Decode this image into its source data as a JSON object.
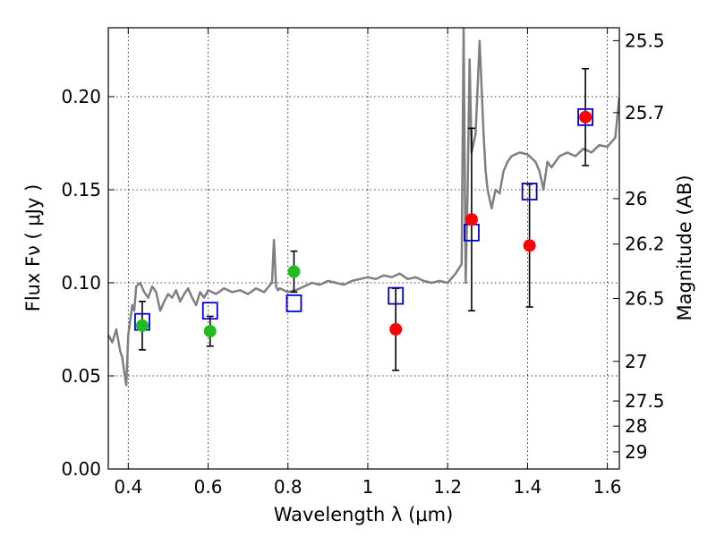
{
  "chart_data": {
    "type": "scatter",
    "xlabel": "Wavelength  λ (μm)",
    "ylabel": "Flux  Fν  ( μJy )",
    "y2label": "Magnitude (AB)",
    "xlim": [
      0.35,
      1.63
    ],
    "ylim": [
      0.0,
      0.237
    ],
    "grid": true,
    "x_ticks": [
      0.4,
      0.6,
      0.8,
      1.0,
      1.2,
      1.4,
      1.6
    ],
    "x_tick_labels": [
      "0.4",
      "0.6",
      "0.8",
      "1",
      "1.2",
      "1.4",
      "1.6"
    ],
    "y_ticks": [
      0.0,
      0.05,
      0.1,
      0.15,
      0.2
    ],
    "y_tick_labels": [
      "0.00",
      "0.05",
      "0.10",
      "0.15",
      "0.20"
    ],
    "y2_ticks": [
      {
        "label": "25.5",
        "flux": 0.2301
      },
      {
        "label": "25.7",
        "flux": 0.1914
      },
      {
        "label": "26",
        "flux": 0.1452
      },
      {
        "label": "26.2",
        "flux": 0.1208
      },
      {
        "label": "26.5",
        "flux": 0.0916
      },
      {
        "label": "27",
        "flux": 0.0578
      },
      {
        "label": "27.5",
        "flux": 0.0365
      },
      {
        "label": "28",
        "flux": 0.023
      },
      {
        "label": "29",
        "flux": 0.0092
      }
    ],
    "model_spectrum": {
      "color": "#7f7f7f",
      "x": [
        0.35,
        0.36,
        0.37,
        0.38,
        0.385,
        0.39,
        0.395,
        0.4,
        0.405,
        0.41,
        0.415,
        0.42,
        0.43,
        0.44,
        0.45,
        0.46,
        0.47,
        0.48,
        0.49,
        0.5,
        0.51,
        0.52,
        0.53,
        0.54,
        0.55,
        0.56,
        0.57,
        0.58,
        0.59,
        0.6,
        0.62,
        0.64,
        0.66,
        0.68,
        0.7,
        0.72,
        0.74,
        0.76,
        0.765,
        0.77,
        0.775,
        0.78,
        0.8,
        0.82,
        0.84,
        0.86,
        0.88,
        0.9,
        0.92,
        0.94,
        0.96,
        0.98,
        1.0,
        1.02,
        1.04,
        1.06,
        1.08,
        1.1,
        1.12,
        1.14,
        1.16,
        1.18,
        1.2,
        1.22,
        1.235,
        1.24,
        1.245,
        1.25,
        1.255,
        1.26,
        1.27,
        1.28,
        1.29,
        1.295,
        1.3,
        1.31,
        1.32,
        1.33,
        1.34,
        1.35,
        1.36,
        1.38,
        1.4,
        1.42,
        1.43,
        1.44,
        1.45,
        1.46,
        1.48,
        1.5,
        1.52,
        1.54,
        1.56,
        1.58,
        1.6,
        1.62,
        1.63
      ],
      "y": [
        0.072,
        0.068,
        0.075,
        0.063,
        0.06,
        0.052,
        0.045,
        0.072,
        0.08,
        0.088,
        0.085,
        0.098,
        0.1,
        0.095,
        0.092,
        0.098,
        0.095,
        0.085,
        0.09,
        0.094,
        0.092,
        0.096,
        0.09,
        0.094,
        0.097,
        0.092,
        0.088,
        0.095,
        0.092,
        0.096,
        0.094,
        0.097,
        0.095,
        0.096,
        0.094,
        0.097,
        0.095,
        0.1,
        0.123,
        0.098,
        0.096,
        0.097,
        0.095,
        0.096,
        0.098,
        0.1,
        0.099,
        0.101,
        0.1,
        0.099,
        0.101,
        0.102,
        0.103,
        0.102,
        0.104,
        0.103,
        0.105,
        0.102,
        0.103,
        0.101,
        0.1,
        0.101,
        0.1,
        0.105,
        0.11,
        0.237,
        0.1,
        0.15,
        0.22,
        0.17,
        0.18,
        0.23,
        0.18,
        0.16,
        0.15,
        0.14,
        0.15,
        0.148,
        0.16,
        0.165,
        0.168,
        0.17,
        0.169,
        0.165,
        0.16,
        0.15,
        0.165,
        0.162,
        0.168,
        0.17,
        0.168,
        0.172,
        0.17,
        0.174,
        0.173,
        0.178,
        0.2
      ]
    },
    "series": [
      {
        "marker": "open-square",
        "color": "#0000cc",
        "points": [
          {
            "x": 0.435,
            "y": 0.079
          },
          {
            "x": 0.605,
            "y": 0.085
          },
          {
            "x": 0.815,
            "y": 0.089
          },
          {
            "x": 1.07,
            "y": 0.093
          },
          {
            "x": 1.26,
            "y": 0.127
          },
          {
            "x": 1.405,
            "y": 0.149
          },
          {
            "x": 1.545,
            "y": 0.189
          }
        ]
      },
      {
        "marker": "filled-circle",
        "color": "#22bb22",
        "points": [
          {
            "x": 0.435,
            "y": 0.077,
            "err": 0.013
          },
          {
            "x": 0.605,
            "y": 0.074,
            "err": 0.008
          },
          {
            "x": 0.815,
            "y": 0.106,
            "err": 0.011
          }
        ]
      },
      {
        "marker": "filled-circle",
        "color": "#ff0000",
        "points": [
          {
            "x": 1.07,
            "y": 0.075,
            "err": 0.022
          },
          {
            "x": 1.26,
            "y": 0.134,
            "err": 0.049
          },
          {
            "x": 1.405,
            "y": 0.12,
            "err": 0.033
          },
          {
            "x": 1.545,
            "y": 0.189,
            "err": 0.026
          }
        ]
      }
    ]
  }
}
